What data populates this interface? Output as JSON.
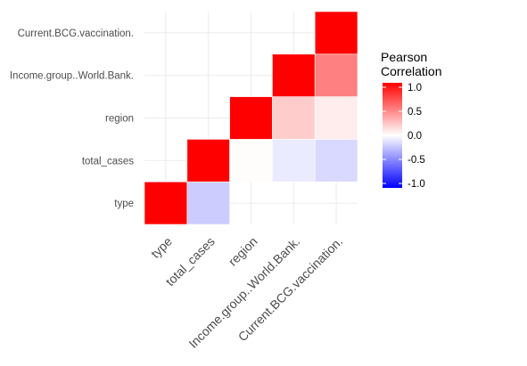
{
  "chart_data": {
    "type": "heatmap",
    "variables": [
      "type",
      "total_cases",
      "region",
      "Income.group..World.Bank.",
      "Current.BCG.vaccination."
    ],
    "cells": [
      {
        "x": "type",
        "y": "type",
        "value": 1.0
      },
      {
        "x": "total_cases",
        "y": "type",
        "value": -0.2
      },
      {
        "x": "total_cases",
        "y": "total_cases",
        "value": 1.0
      },
      {
        "x": "region",
        "y": "total_cases",
        "value": 0.01
      },
      {
        "x": "Income.group..World.Bank.",
        "y": "total_cases",
        "value": -0.08
      },
      {
        "x": "Current.BCG.vaccination.",
        "y": "total_cases",
        "value": -0.15
      },
      {
        "x": "region",
        "y": "region",
        "value": 1.0
      },
      {
        "x": "Income.group..World.Bank.",
        "y": "region",
        "value": 0.2
      },
      {
        "x": "Current.BCG.vaccination.",
        "y": "region",
        "value": 0.07
      },
      {
        "x": "Income.group..World.Bank.",
        "y": "Income.group..World.Bank.",
        "value": 1.0
      },
      {
        "x": "Current.BCG.vaccination.",
        "y": "Income.group..World.Bank.",
        "value": 0.5
      },
      {
        "x": "Current.BCG.vaccination.",
        "y": "Current.BCG.vaccination.",
        "value": 1.0
      }
    ],
    "legend": {
      "title_lines": [
        "Pearson",
        "Correlation"
      ],
      "ticks": [
        1.0,
        0.5,
        0.0,
        -0.5,
        -1.0
      ],
      "tick_labels": [
        "1.0",
        "0.5",
        "0.0",
        "-0.5",
        "-1.0"
      ],
      "range": [
        -1,
        1
      ],
      "placement": "right"
    },
    "colors": {
      "low": "#0000ff",
      "mid": "#ffffff",
      "high": "#ff0000"
    },
    "grid": true
  }
}
